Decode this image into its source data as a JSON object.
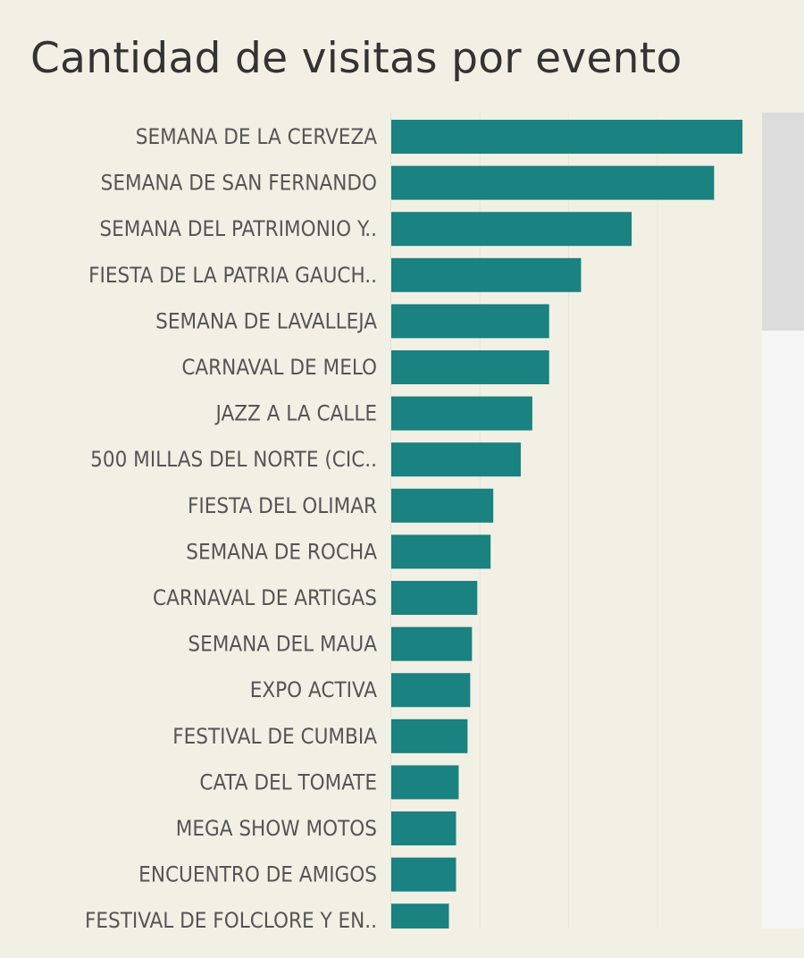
{
  "chart_data": {
    "type": "bar",
    "orientation": "horizontal",
    "title": "Cantidad de visitas por evento",
    "xlabel": "",
    "ylabel": "",
    "grid": true,
    "bar_color": "#1a8280",
    "categories": [
      "SEMANA DE LA CERVEZA",
      "SEMANA DE SAN FERNANDO",
      "SEMANA DEL PATRIMONIO Y..",
      "FIESTA DE LA PATRIA GAUCH..",
      "SEMANA DE LAVALLEJA",
      "CARNAVAL DE MELO",
      "JAZZ A LA CALLE",
      "500 MILLAS DEL NORTE (CIC..",
      "FIESTA DEL OLIMAR",
      "SEMANA DE ROCHA",
      "CARNAVAL DE ARTIGAS",
      "SEMANA DEL MAUA",
      "EXPO ACTIVA",
      "FESTIVAL DE CUMBIA",
      "CATA DEL TOMATE",
      "MEGA SHOW MOTOS",
      "ENCUENTRO DE AMIGOS",
      "FESTIVAL DE FOLCLORE Y EN.."
    ],
    "values": [
      396,
      364,
      271,
      214,
      178,
      178,
      159,
      146,
      115,
      112,
      97,
      91,
      89,
      86,
      76,
      73,
      73,
      65
    ],
    "xlim": [
      0,
      415
    ]
  }
}
